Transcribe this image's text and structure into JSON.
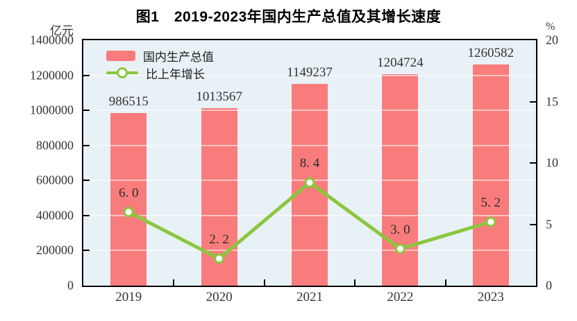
{
  "title": "图1　2019-2023年国内生产总值及其增长速度",
  "left_axis": {
    "unit": "亿元",
    "tick_labels": [
      "1400000",
      "1200000",
      "1000000",
      "800000",
      "600000",
      "400000",
      "200000",
      "0"
    ],
    "min": 0,
    "max": 1400000
  },
  "right_axis": {
    "unit": "%",
    "tick_labels": [
      "20",
      "15",
      "10",
      "5",
      "0"
    ],
    "min": 0,
    "max": 20
  },
  "legend": {
    "bar_label": "国内生产总值",
    "line_label": "比上年增长"
  },
  "colors": {
    "bar": "#F97C7C",
    "line": "#8CC63E",
    "marker_fill": "#FFFFFF",
    "plot_bg": "#E8F1F5",
    "grid": "rgba(255,255,255,0.55)",
    "axis": "#000000"
  },
  "chart_data": {
    "type": "bar+line combo",
    "title": "图1　2019-2023年国内生产总值及其增长速度",
    "categories": [
      "2019",
      "2020",
      "2021",
      "2022",
      "2023"
    ],
    "series": [
      {
        "name": "国内生产总值",
        "type": "bar",
        "axis": "left",
        "unit": "亿元",
        "values": [
          986515,
          1013567,
          1149237,
          1204724,
          1260582
        ],
        "labels": [
          "986515",
          "1013567",
          "1149237",
          "1204724",
          "1260582"
        ]
      },
      {
        "name": "比上年增长",
        "type": "line",
        "axis": "right",
        "unit": "%",
        "values": [
          6.0,
          2.2,
          8.4,
          3.0,
          5.2
        ],
        "labels": [
          "6. 0",
          "2. 2",
          "8. 4",
          "3. 0",
          "5. 2"
        ]
      }
    ],
    "left_ylim": [
      0,
      1400000
    ],
    "right_ylim": [
      0,
      20
    ],
    "grid": true,
    "legend_position": "top-left-inside"
  }
}
